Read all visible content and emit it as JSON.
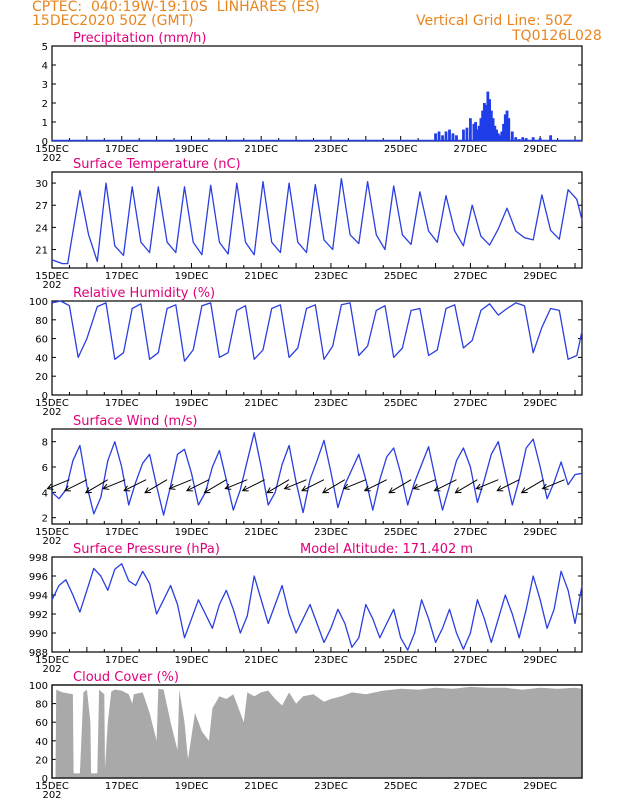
{
  "header": {
    "line1": "CPTEC:  040:19W-19:10S  LINHARES (ES)",
    "line2": "15DEC2020 50Z (GMT)",
    "right1": "Vertical Grid Line: 50Z",
    "right2": "TQ0126L028"
  },
  "colors": {
    "line": "#2b3ee0",
    "bar": "#1f3de8",
    "cloud": "#a9a9a9",
    "title": "#e0007a",
    "header": "#e8851f",
    "arrow": "#000000"
  },
  "x_axis": {
    "labels": [
      "15DEC",
      "17DEC",
      "19DEC",
      "21DEC",
      "23DEC",
      "25DEC",
      "27DEC",
      "29DEC"
    ],
    "cutoff_label": "202",
    "day_start": 0,
    "day_end": 15.2
  },
  "chart_data": [
    {
      "id": "precip",
      "type": "bar",
      "title": "Precipitation (mm/h)",
      "ylim": [
        0,
        5
      ],
      "yticks": [
        "0",
        "1",
        "2",
        "3",
        "4",
        "5"
      ],
      "note": "hourly rainfall, mostly zero; burst between 26DEC and 29DEC",
      "x_days": [
        11.0,
        11.1,
        11.2,
        11.3,
        11.4,
        11.5,
        11.6,
        11.8,
        11.9,
        12.0,
        12.1,
        12.15,
        12.2,
        12.25,
        12.3,
        12.35,
        12.4,
        12.45,
        12.5,
        12.55,
        12.6,
        12.65,
        12.7,
        12.75,
        12.8,
        12.85,
        12.9,
        12.95,
        13.0,
        13.05,
        13.1,
        13.2,
        13.3,
        13.4,
        13.5,
        13.6,
        13.8,
        14.0,
        14.3
      ],
      "values": [
        0.4,
        0.5,
        0.3,
        0.5,
        0.6,
        0.4,
        0.3,
        0.6,
        0.7,
        1.2,
        0.9,
        1.0,
        0.6,
        0.8,
        1.2,
        1.6,
        2.0,
        1.9,
        2.6,
        2.2,
        1.6,
        1.2,
        0.8,
        0.6,
        0.4,
        0.3,
        0.5,
        0.9,
        1.4,
        1.6,
        1.2,
        0.5,
        0.2,
        0.1,
        0.2,
        0.15,
        0.2,
        0.15,
        0.3
      ]
    },
    {
      "id": "temp",
      "type": "line",
      "title": "Surface Temperature (nC)",
      "ylim": [
        18.5,
        31.5
      ],
      "yticks": [
        "21",
        "24",
        "27",
        "30"
      ],
      "ytick_values": [
        21,
        24,
        27,
        30
      ],
      "x_days": [
        0,
        0.3,
        0.45,
        0.55,
        0.8,
        1.05,
        1.3,
        1.55,
        1.8,
        2.05,
        2.3,
        2.55,
        2.8,
        3.05,
        3.3,
        3.55,
        3.8,
        4.05,
        4.3,
        4.55,
        4.8,
        5.05,
        5.3,
        5.55,
        5.8,
        6.05,
        6.3,
        6.55,
        6.8,
        7.05,
        7.3,
        7.55,
        7.8,
        8.05,
        8.3,
        8.55,
        8.8,
        9.05,
        9.3,
        9.55,
        9.8,
        10.05,
        10.3,
        10.55,
        10.8,
        11.05,
        11.3,
        11.55,
        11.8,
        12.05,
        12.3,
        12.55,
        12.8,
        13.05,
        13.3,
        13.55,
        13.8,
        14.05,
        14.3,
        14.55,
        14.8,
        15.05,
        15.2
      ],
      "values": [
        19.6,
        19.1,
        19.1,
        22.0,
        29.0,
        23.0,
        19.4,
        30.0,
        21.5,
        20.2,
        29.5,
        22.0,
        20.6,
        29.5,
        22.0,
        20.6,
        29.5,
        22.0,
        20.3,
        29.7,
        22.0,
        20.4,
        30.0,
        22.0,
        20.3,
        30.2,
        22.0,
        20.6,
        30.0,
        22.0,
        20.6,
        29.8,
        22.3,
        21.0,
        30.6,
        23.0,
        21.8,
        30.2,
        23.0,
        21.0,
        29.6,
        23.0,
        21.7,
        28.8,
        23.5,
        22.0,
        28.3,
        23.5,
        21.5,
        27.0,
        22.8,
        21.6,
        23.8,
        26.6,
        23.5,
        22.6,
        22.3,
        28.4,
        23.6,
        22.4,
        29.1,
        27.8,
        25.0
      ]
    },
    {
      "id": "rh",
      "type": "line",
      "title": "Relative Humidity (%)",
      "ylim": [
        0,
        100
      ],
      "yticks": [
        "0",
        "20",
        "40",
        "60",
        "80",
        "100"
      ],
      "ytick_values": [
        0,
        20,
        40,
        60,
        80,
        100
      ],
      "x_days": [
        0,
        0.25,
        0.5,
        0.75,
        1.0,
        1.3,
        1.55,
        1.8,
        2.05,
        2.3,
        2.55,
        2.8,
        3.05,
        3.3,
        3.55,
        3.8,
        4.05,
        4.3,
        4.55,
        4.8,
        5.05,
        5.3,
        5.55,
        5.8,
        6.05,
        6.3,
        6.55,
        6.8,
        7.05,
        7.3,
        7.55,
        7.8,
        8.05,
        8.3,
        8.55,
        8.8,
        9.05,
        9.3,
        9.55,
        9.8,
        10.05,
        10.3,
        10.55,
        10.8,
        11.05,
        11.3,
        11.55,
        11.8,
        12.05,
        12.3,
        12.55,
        12.8,
        13.05,
        13.3,
        13.55,
        13.8,
        14.05,
        14.3,
        14.55,
        14.8,
        15.05,
        15.2
      ],
      "values": [
        98,
        100,
        95,
        40,
        60,
        94,
        98,
        38,
        45,
        92,
        97,
        38,
        45,
        92,
        96,
        36,
        48,
        95,
        98,
        40,
        45,
        90,
        95,
        38,
        48,
        92,
        96,
        40,
        50,
        92,
        96,
        38,
        52,
        96,
        98,
        42,
        52,
        90,
        95,
        40,
        50,
        90,
        92,
        42,
        48,
        92,
        96,
        50,
        58,
        90,
        97,
        85,
        92,
        98,
        95,
        45,
        72,
        92,
        90,
        38,
        42,
        68
      ]
    },
    {
      "id": "wind",
      "type": "line",
      "title": "Surface Wind (m/s)",
      "ylim": [
        1.5,
        9.0
      ],
      "yticks": [
        "2",
        "4",
        "6",
        "8"
      ],
      "ytick_values": [
        2,
        4,
        6,
        8
      ],
      "x_days": [
        0,
        0.2,
        0.4,
        0.6,
        0.8,
        1.0,
        1.2,
        1.4,
        1.6,
        1.8,
        2.0,
        2.2,
        2.4,
        2.6,
        2.8,
        3.0,
        3.2,
        3.4,
        3.6,
        3.8,
        4.0,
        4.2,
        4.4,
        4.6,
        4.8,
        5.0,
        5.2,
        5.4,
        5.6,
        5.8,
        6.0,
        6.2,
        6.4,
        6.6,
        6.8,
        7.0,
        7.2,
        7.4,
        7.6,
        7.8,
        8.0,
        8.2,
        8.4,
        8.6,
        8.8,
        9.0,
        9.2,
        9.4,
        9.6,
        9.8,
        10.0,
        10.2,
        10.4,
        10.6,
        10.8,
        11.0,
        11.2,
        11.4,
        11.6,
        11.8,
        12.0,
        12.2,
        12.4,
        12.6,
        12.8,
        13.0,
        13.2,
        13.4,
        13.6,
        13.8,
        14.0,
        14.2,
        14.4,
        14.6,
        14.8,
        15.0,
        15.2
      ],
      "values": [
        4.0,
        3.5,
        4.2,
        6.5,
        7.7,
        4.5,
        2.3,
        3.6,
        6.5,
        8.0,
        6.0,
        3.0,
        4.8,
        6.3,
        7.0,
        4.5,
        2.2,
        4.5,
        7.0,
        7.4,
        5.5,
        3.0,
        4.0,
        6.0,
        7.3,
        5.0,
        2.6,
        4.2,
        6.5,
        8.7,
        6.0,
        3.0,
        4.0,
        6.2,
        7.7,
        4.8,
        2.4,
        5.0,
        6.5,
        8.1,
        5.6,
        2.8,
        4.6,
        5.8,
        7.0,
        5.0,
        2.6,
        5.0,
        6.8,
        7.5,
        5.5,
        3.0,
        4.8,
        6.2,
        7.6,
        5.0,
        2.6,
        4.5,
        6.5,
        7.5,
        6.0,
        3.2,
        5.0,
        7.0,
        8.0,
        5.5,
        3.0,
        5.0,
        7.5,
        8.2,
        6.0,
        3.5,
        4.8,
        6.4,
        4.6,
        5.4,
        5.5
      ],
      "arrows_days": [
        0.5,
        1.0,
        1.6,
        2.1,
        2.7,
        3.3,
        4.0,
        4.5,
        5.0,
        5.6,
        6.1,
        6.8,
        7.3,
        7.8,
        8.4,
        9.0,
        9.6,
        10.3,
        11.0,
        11.6,
        12.2,
        12.8,
        13.4,
        14.1,
        14.7
      ]
    },
    {
      "id": "pres",
      "type": "line",
      "title": "Surface Pressure (hPa)",
      "subtitle": "Model Altitude: 171.402  m",
      "ylim": [
        988,
        998
      ],
      "yticks": [
        "988",
        "990",
        "992",
        "994",
        "996",
        "998"
      ],
      "ytick_values": [
        988,
        990,
        992,
        994,
        996,
        998
      ],
      "x_days": [
        0,
        0.2,
        0.4,
        0.6,
        0.8,
        1.0,
        1.2,
        1.4,
        1.6,
        1.8,
        2.0,
        2.2,
        2.4,
        2.6,
        2.8,
        3.0,
        3.2,
        3.4,
        3.6,
        3.8,
        4.0,
        4.2,
        4.4,
        4.6,
        4.8,
        5.0,
        5.2,
        5.4,
        5.6,
        5.8,
        6.0,
        6.2,
        6.4,
        6.6,
        6.8,
        7.0,
        7.2,
        7.4,
        7.6,
        7.8,
        8.0,
        8.2,
        8.4,
        8.6,
        8.8,
        9.0,
        9.2,
        9.4,
        9.6,
        9.8,
        10.0,
        10.2,
        10.4,
        10.6,
        10.8,
        11.0,
        11.2,
        11.4,
        11.6,
        11.8,
        12.0,
        12.2,
        12.4,
        12.6,
        12.8,
        13.0,
        13.2,
        13.4,
        13.6,
        13.8,
        14.0,
        14.2,
        14.4,
        14.6,
        14.8,
        15.0,
        15.2
      ],
      "values": [
        993.5,
        995.0,
        995.6,
        994.0,
        992.2,
        994.5,
        996.8,
        996.0,
        994.5,
        996.7,
        997.3,
        995.5,
        995.0,
        996.5,
        995.2,
        992.0,
        993.5,
        995.0,
        993.0,
        989.5,
        991.5,
        993.5,
        992.0,
        990.5,
        993.0,
        994.5,
        992.5,
        990.0,
        991.8,
        996.0,
        993.5,
        991.0,
        993.0,
        995.0,
        992.0,
        990.0,
        991.5,
        993.0,
        991.0,
        989.0,
        990.5,
        992.5,
        991.0,
        988.5,
        989.5,
        993.0,
        991.5,
        989.5,
        991.0,
        992.5,
        989.5,
        988.2,
        990.0,
        993.5,
        991.5,
        989.0,
        990.5,
        992.5,
        990.0,
        988.3,
        990.0,
        993.5,
        991.5,
        989.0,
        991.5,
        994.0,
        992.0,
        989.5,
        992.5,
        996.0,
        993.5,
        990.5,
        992.5,
        996.5,
        994.5,
        991.0,
        995.0
      ]
    },
    {
      "id": "cloud",
      "type": "area",
      "title": "Cloud Cover (%)",
      "ylim": [
        0,
        100
      ],
      "yticks": [
        "0",
        "20",
        "40",
        "60",
        "80",
        "100"
      ],
      "ytick_values": [
        0,
        20,
        40,
        60,
        80,
        100
      ],
      "x_days": [
        0,
        0.1,
        0.12,
        0.3,
        0.6,
        0.62,
        0.8,
        0.9,
        1.0,
        1.1,
        1.12,
        1.3,
        1.35,
        1.5,
        1.52,
        1.6,
        1.7,
        1.8,
        2.0,
        2.2,
        2.3,
        2.35,
        2.6,
        2.8,
        3.0,
        3.05,
        3.2,
        3.4,
        3.6,
        3.65,
        3.8,
        3.9,
        4.0,
        4.1,
        4.3,
        4.5,
        4.6,
        4.8,
        5.0,
        5.2,
        5.4,
        5.5,
        5.6,
        5.8,
        6.0,
        6.2,
        6.4,
        6.6,
        6.8,
        7.0,
        7.2,
        7.5,
        7.8,
        8.0,
        8.3,
        8.6,
        9.0,
        9.5,
        10.0,
        10.5,
        11.0,
        11.5,
        12.0,
        12.5,
        13.0,
        13.5,
        14.0,
        14.5,
        15.0,
        15.2
      ],
      "values": [
        0,
        0,
        95,
        92,
        90,
        5,
        5,
        92,
        95,
        60,
        5,
        5,
        95,
        90,
        10,
        60,
        93,
        95,
        94,
        90,
        80,
        90,
        92,
        70,
        40,
        96,
        95,
        60,
        30,
        95,
        60,
        20,
        45,
        70,
        50,
        40,
        75,
        88,
        85,
        90,
        70,
        60,
        92,
        88,
        92,
        94,
        85,
        78,
        92,
        80,
        88,
        90,
        82,
        85,
        88,
        92,
        90,
        94,
        96,
        95,
        97,
        96,
        98,
        97,
        97,
        95,
        97,
        96,
        97,
        96
      ]
    }
  ]
}
